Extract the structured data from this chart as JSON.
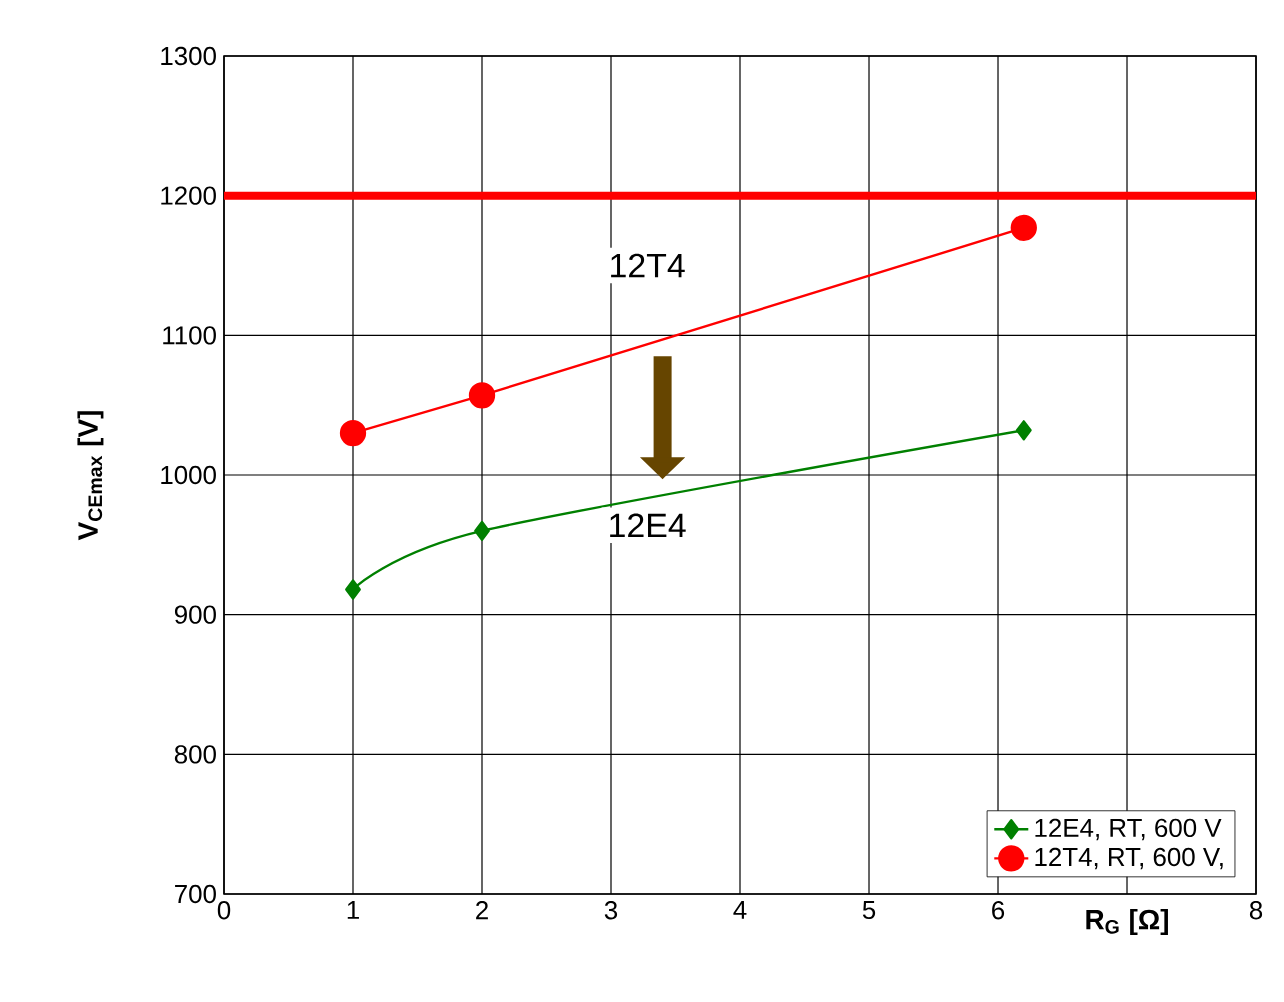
{
  "chart_data": {
    "type": "line",
    "xlabel": "**R$_{G}$ [Ω]**",
    "ylabel": "**V$_{CEmax}$ [V]**",
    "xlim": [
      0,
      8
    ],
    "xticks": [
      0,
      1,
      2,
      3,
      4,
      5,
      6,
      {
        "value": 7,
        "label": null
      },
      8
    ],
    "ylim": [
      700,
      1300
    ],
    "yticks": [
      700,
      800,
      900,
      1000,
      1100,
      1200,
      1300
    ],
    "grid": true,
    "legend": "bottom right",
    "series": [
      {
        "name": "12E4, RT, 600 V",
        "color": "#008000",
        "marker": "diamond",
        "x": [
          1,
          2,
          6.2
        ],
        "values": [
          918,
          960,
          1032
        ]
      },
      {
        "name": "12T4, RT, 600 V,",
        "color": "#ff0000",
        "marker": "circle",
        "x": [
          1,
          2,
          6.2
        ],
        "values": [
          1030,
          1057,
          1177
        ]
      }
    ],
    "ref_lines": [
      {
        "axis": "y",
        "value": 1200,
        "color": "#ff0000"
      }
    ],
    "annotations": [
      "12T4",
      "12E4"
    ]
  }
}
